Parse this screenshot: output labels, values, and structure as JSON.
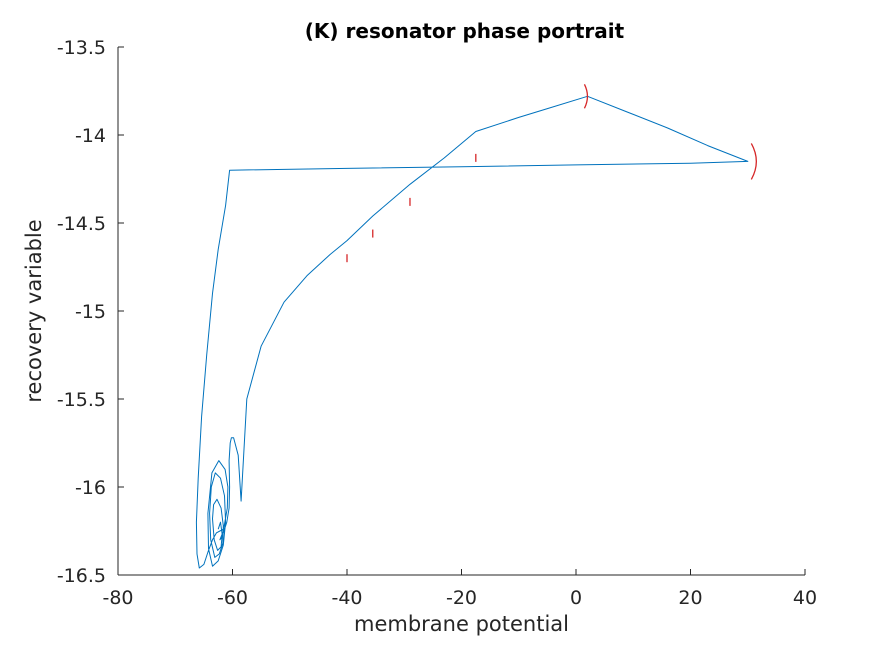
{
  "chart_data": {
    "type": "line",
    "title": "(K) resonator phase portrait",
    "xlabel": "membrane potential",
    "ylabel": "recovery variable",
    "xlim": [
      -80,
      40
    ],
    "ylim": [
      -16.5,
      -13.5
    ],
    "xticks": [
      -80,
      -60,
      -40,
      -20,
      0,
      20,
      40
    ],
    "yticks": [
      -13.5,
      -14,
      -14.5,
      -15,
      -15.5,
      -16,
      -16.5
    ],
    "xtick_labels": [
      "-80",
      "-60",
      "-40",
      "-20",
      "0",
      "20",
      "40"
    ],
    "ytick_labels": [
      "-13.5",
      "-14",
      "-14.5",
      "-15",
      "-15.5",
      "-16",
      "-16.5"
    ],
    "grid": false,
    "line_color": "#0072BD",
    "marker_color": "#D62728",
    "series": [
      {
        "x": [
          -62.5,
          -62.1,
          -61.8,
          -62.0,
          -62.6,
          -63.2,
          -63.5,
          -63.3,
          -62.7,
          -62.0,
          -61.6,
          -61.7,
          -62.3,
          -63.1,
          -63.8,
          -64.0,
          -63.7,
          -63.0,
          -62.1,
          -61.4,
          -61.2,
          -61.6,
          -62.5,
          -63.5,
          -64.2,
          -64.3,
          -63.6,
          -62.4,
          -61.3,
          -60.8,
          -60.9,
          -61.6,
          -62.2,
          -61.8,
          -61.0,
          -60.6,
          -60.5,
          -60.6,
          -60.4,
          -60.2,
          -59.8,
          -59.0,
          -58.5,
          -57.5,
          -55.0,
          -51.0,
          -47.0,
          -43.0,
          -40.0,
          -35.5,
          -29.0,
          -23.0,
          -17.5,
          -10.0,
          -5.0,
          2.0,
          9.0,
          16.0,
          23.0,
          30.0,
          20.0,
          0.0,
          -20.0,
          -40.0,
          -60.5,
          -61.2,
          -62.5,
          -63.5,
          -64.5,
          -65.4,
          -66.0,
          -66.3,
          -66.2,
          -65.8,
          -65.0,
          -64.2,
          -63.5,
          -62.8,
          -62.2,
          -61.6
        ],
        "y": [
          -16.24,
          -16.2,
          -16.27,
          -16.34,
          -16.36,
          -16.3,
          -16.18,
          -16.1,
          -16.07,
          -16.12,
          -16.22,
          -16.32,
          -16.38,
          -16.4,
          -16.3,
          -16.15,
          -16.0,
          -15.92,
          -15.95,
          -16.05,
          -16.2,
          -16.33,
          -16.42,
          -16.45,
          -16.35,
          -16.15,
          -15.92,
          -15.85,
          -15.9,
          -16.0,
          -16.12,
          -16.25,
          -16.3,
          -16.28,
          -16.2,
          -16.12,
          -16.0,
          -15.85,
          -15.75,
          -15.72,
          -15.72,
          -15.82,
          -16.08,
          -15.5,
          -15.2,
          -14.95,
          -14.8,
          -14.68,
          -14.6,
          -14.46,
          -14.28,
          -14.13,
          -13.98,
          -13.9,
          -13.85,
          -13.78,
          -13.87,
          -13.96,
          -14.06,
          -14.15,
          -14.16,
          -14.17,
          -14.18,
          -14.19,
          -14.2,
          -14.4,
          -14.65,
          -14.9,
          -15.25,
          -15.6,
          -15.95,
          -16.2,
          -16.38,
          -16.46,
          -16.44,
          -16.36,
          -16.3,
          -16.26,
          -16.25,
          -16.24
        ]
      }
    ],
    "spike_markers": [
      {
        "x": 2.0,
        "y": -13.78
      },
      {
        "x": 31.5,
        "y": -14.15
      },
      {
        "x": -17.5,
        "y": -14.13
      },
      {
        "x": -29.0,
        "y": -14.38
      },
      {
        "x": -35.5,
        "y": -14.56
      },
      {
        "x": -40.0,
        "y": -14.7
      }
    ]
  }
}
